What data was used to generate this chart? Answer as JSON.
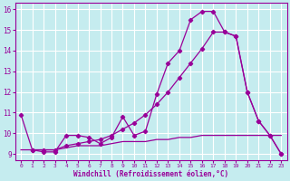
{
  "xlabel": "Windchill (Refroidissement éolien,°C)",
  "bg_color": "#c5ecef",
  "line_color": "#990099",
  "grid_color": "#ffffff",
  "xlim": [
    -0.5,
    23.5
  ],
  "ylim": [
    8.7,
    16.3
  ],
  "yticks": [
    9,
    10,
    11,
    12,
    13,
    14,
    15,
    16
  ],
  "xticks": [
    0,
    1,
    2,
    3,
    4,
    5,
    6,
    7,
    8,
    9,
    10,
    11,
    12,
    13,
    14,
    15,
    16,
    17,
    18,
    19,
    20,
    21,
    22,
    23
  ],
  "curve1_x": [
    0,
    1,
    2,
    3,
    4,
    5,
    6,
    7,
    8,
    9,
    10,
    11,
    12,
    13,
    14,
    15,
    16,
    17,
    18,
    19,
    20,
    21,
    22,
    23
  ],
  "curve1_y": [
    10.9,
    9.2,
    9.1,
    9.1,
    9.9,
    9.9,
    9.8,
    9.5,
    9.8,
    10.8,
    9.9,
    10.1,
    11.9,
    13.4,
    14.0,
    15.5,
    15.9,
    15.9,
    14.9,
    14.7,
    12.0,
    10.6,
    9.9,
    9.0
  ],
  "curve2_x": [
    1,
    2,
    3,
    4,
    5,
    6,
    7,
    8,
    9,
    10,
    11,
    12,
    13,
    14,
    15,
    16,
    17,
    18,
    19,
    20,
    21,
    22,
    23
  ],
  "curve2_y": [
    9.2,
    9.2,
    9.2,
    9.4,
    9.5,
    9.6,
    9.7,
    9.9,
    10.2,
    10.5,
    10.9,
    11.4,
    12.0,
    12.7,
    13.4,
    14.1,
    14.9,
    14.9,
    14.7,
    12.0,
    10.6,
    9.9,
    9.0
  ],
  "curve3_x": [
    0,
    1,
    2,
    3,
    4,
    5,
    6,
    7,
    8,
    9,
    10,
    11,
    12,
    13,
    14,
    15,
    16,
    17,
    18,
    19,
    20,
    21,
    22,
    23
  ],
  "curve3_y": [
    9.2,
    9.2,
    9.2,
    9.2,
    9.3,
    9.4,
    9.4,
    9.4,
    9.5,
    9.6,
    9.6,
    9.6,
    9.7,
    9.7,
    9.8,
    9.8,
    9.9,
    9.9,
    9.9,
    9.9,
    9.9,
    9.9,
    9.9,
    9.9
  ]
}
